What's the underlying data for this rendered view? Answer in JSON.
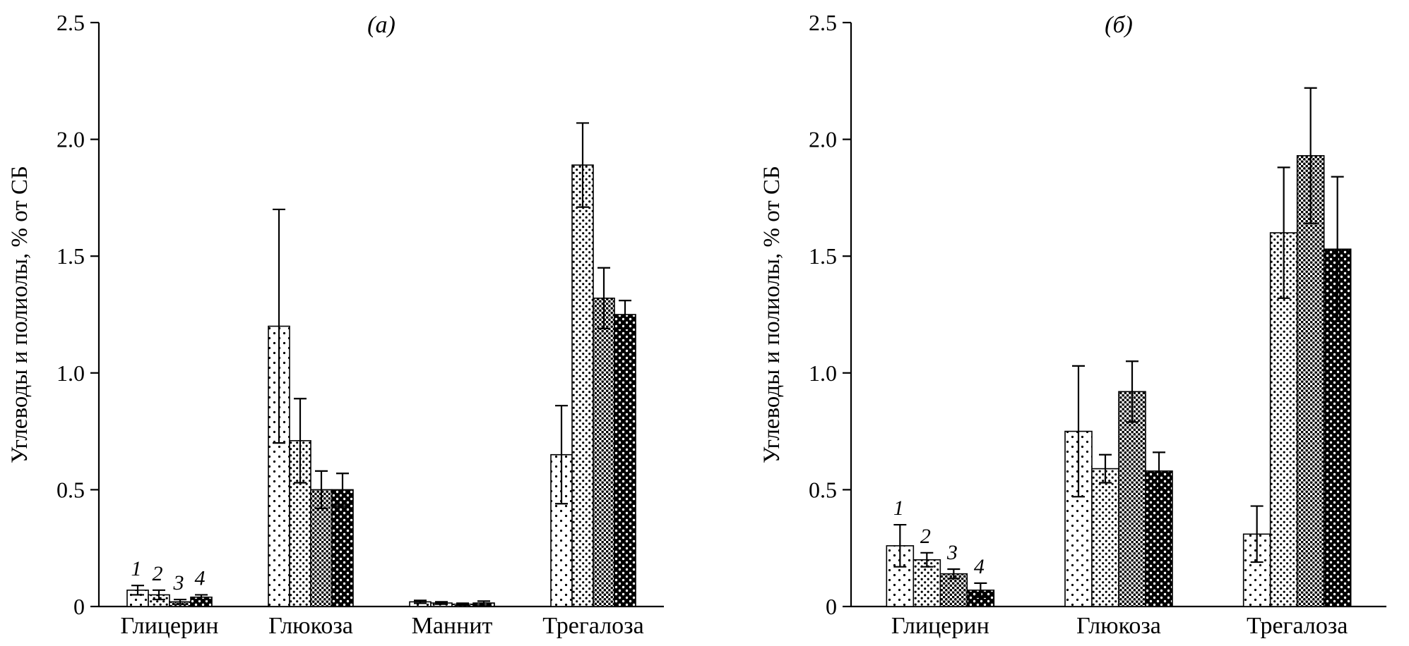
{
  "figure": {
    "background": "#ffffff",
    "ink_color": "#000000",
    "description_visible_panels": [
      "(а)",
      "(б)"
    ]
  },
  "chart_data": [
    {
      "type": "bar",
      "panel_label": "(а)",
      "title": "(а)",
      "xlabel": "",
      "ylabel": "Углеводы и полиолы, % от СБ",
      "ylim": [
        0,
        2.5
      ],
      "yticks": [
        0,
        0.5,
        1.0,
        1.5,
        2.0,
        2.5
      ],
      "ytick_labels": [
        "0",
        "0.5",
        "1.0",
        "1.5",
        "2.0",
        "2.5"
      ],
      "grid": false,
      "legend_position": "none",
      "categories": [
        "Глицерин",
        "Глюкоза",
        "Маннит",
        "Трегалоза"
      ],
      "series": [
        {
          "name": "1",
          "pattern": "dots-sparse",
          "values": [
            0.07,
            1.2,
            0.02,
            0.65
          ],
          "errors": [
            0.02,
            0.5,
            0.006,
            0.21
          ]
        },
        {
          "name": "2",
          "pattern": "dots-medium",
          "values": [
            0.05,
            0.71,
            0.015,
            1.89
          ],
          "errors": [
            0.02,
            0.18,
            0.005,
            0.18
          ]
        },
        {
          "name": "3",
          "pattern": "dots-dense",
          "values": [
            0.02,
            0.5,
            0.01,
            1.32
          ],
          "errors": [
            0.01,
            0.08,
            0.004,
            0.13
          ]
        },
        {
          "name": "4",
          "pattern": "black-white-dots",
          "values": [
            0.04,
            0.5,
            0.015,
            1.25
          ],
          "errors": [
            0.01,
            0.07,
            0.008,
            0.06
          ]
        }
      ],
      "series_number_labels": [
        "1",
        "2",
        "3",
        "4"
      ],
      "series_labels_on_group": 0
    },
    {
      "type": "bar",
      "panel_label": "(б)",
      "title": "(б)",
      "xlabel": "",
      "ylabel": "Углеводы и полиолы, % от СБ",
      "ylim": [
        0,
        2.5
      ],
      "yticks": [
        0,
        0.5,
        1.0,
        1.5,
        2.0,
        2.5
      ],
      "ytick_labels": [
        "0",
        "0.5",
        "1.0",
        "1.5",
        "2.0",
        "2.5"
      ],
      "grid": false,
      "legend_position": "none",
      "categories": [
        "Глицерин",
        "Глюкоза",
        "Трегалоза"
      ],
      "series": [
        {
          "name": "1",
          "pattern": "dots-sparse",
          "values": [
            0.26,
            0.75,
            0.31
          ],
          "errors": [
            0.09,
            0.28,
            0.12
          ]
        },
        {
          "name": "2",
          "pattern": "dots-medium",
          "values": [
            0.2,
            0.59,
            1.6
          ],
          "errors": [
            0.03,
            0.06,
            0.28
          ]
        },
        {
          "name": "3",
          "pattern": "dots-dense",
          "values": [
            0.14,
            0.92,
            1.93
          ],
          "errors": [
            0.02,
            0.13,
            0.29
          ]
        },
        {
          "name": "4",
          "pattern": "black-white-dots",
          "values": [
            0.07,
            0.58,
            1.53
          ],
          "errors": [
            0.03,
            0.08,
            0.31
          ]
        }
      ],
      "series_number_labels": [
        "1",
        "2",
        "3",
        "4"
      ],
      "series_labels_on_group": 0
    }
  ]
}
